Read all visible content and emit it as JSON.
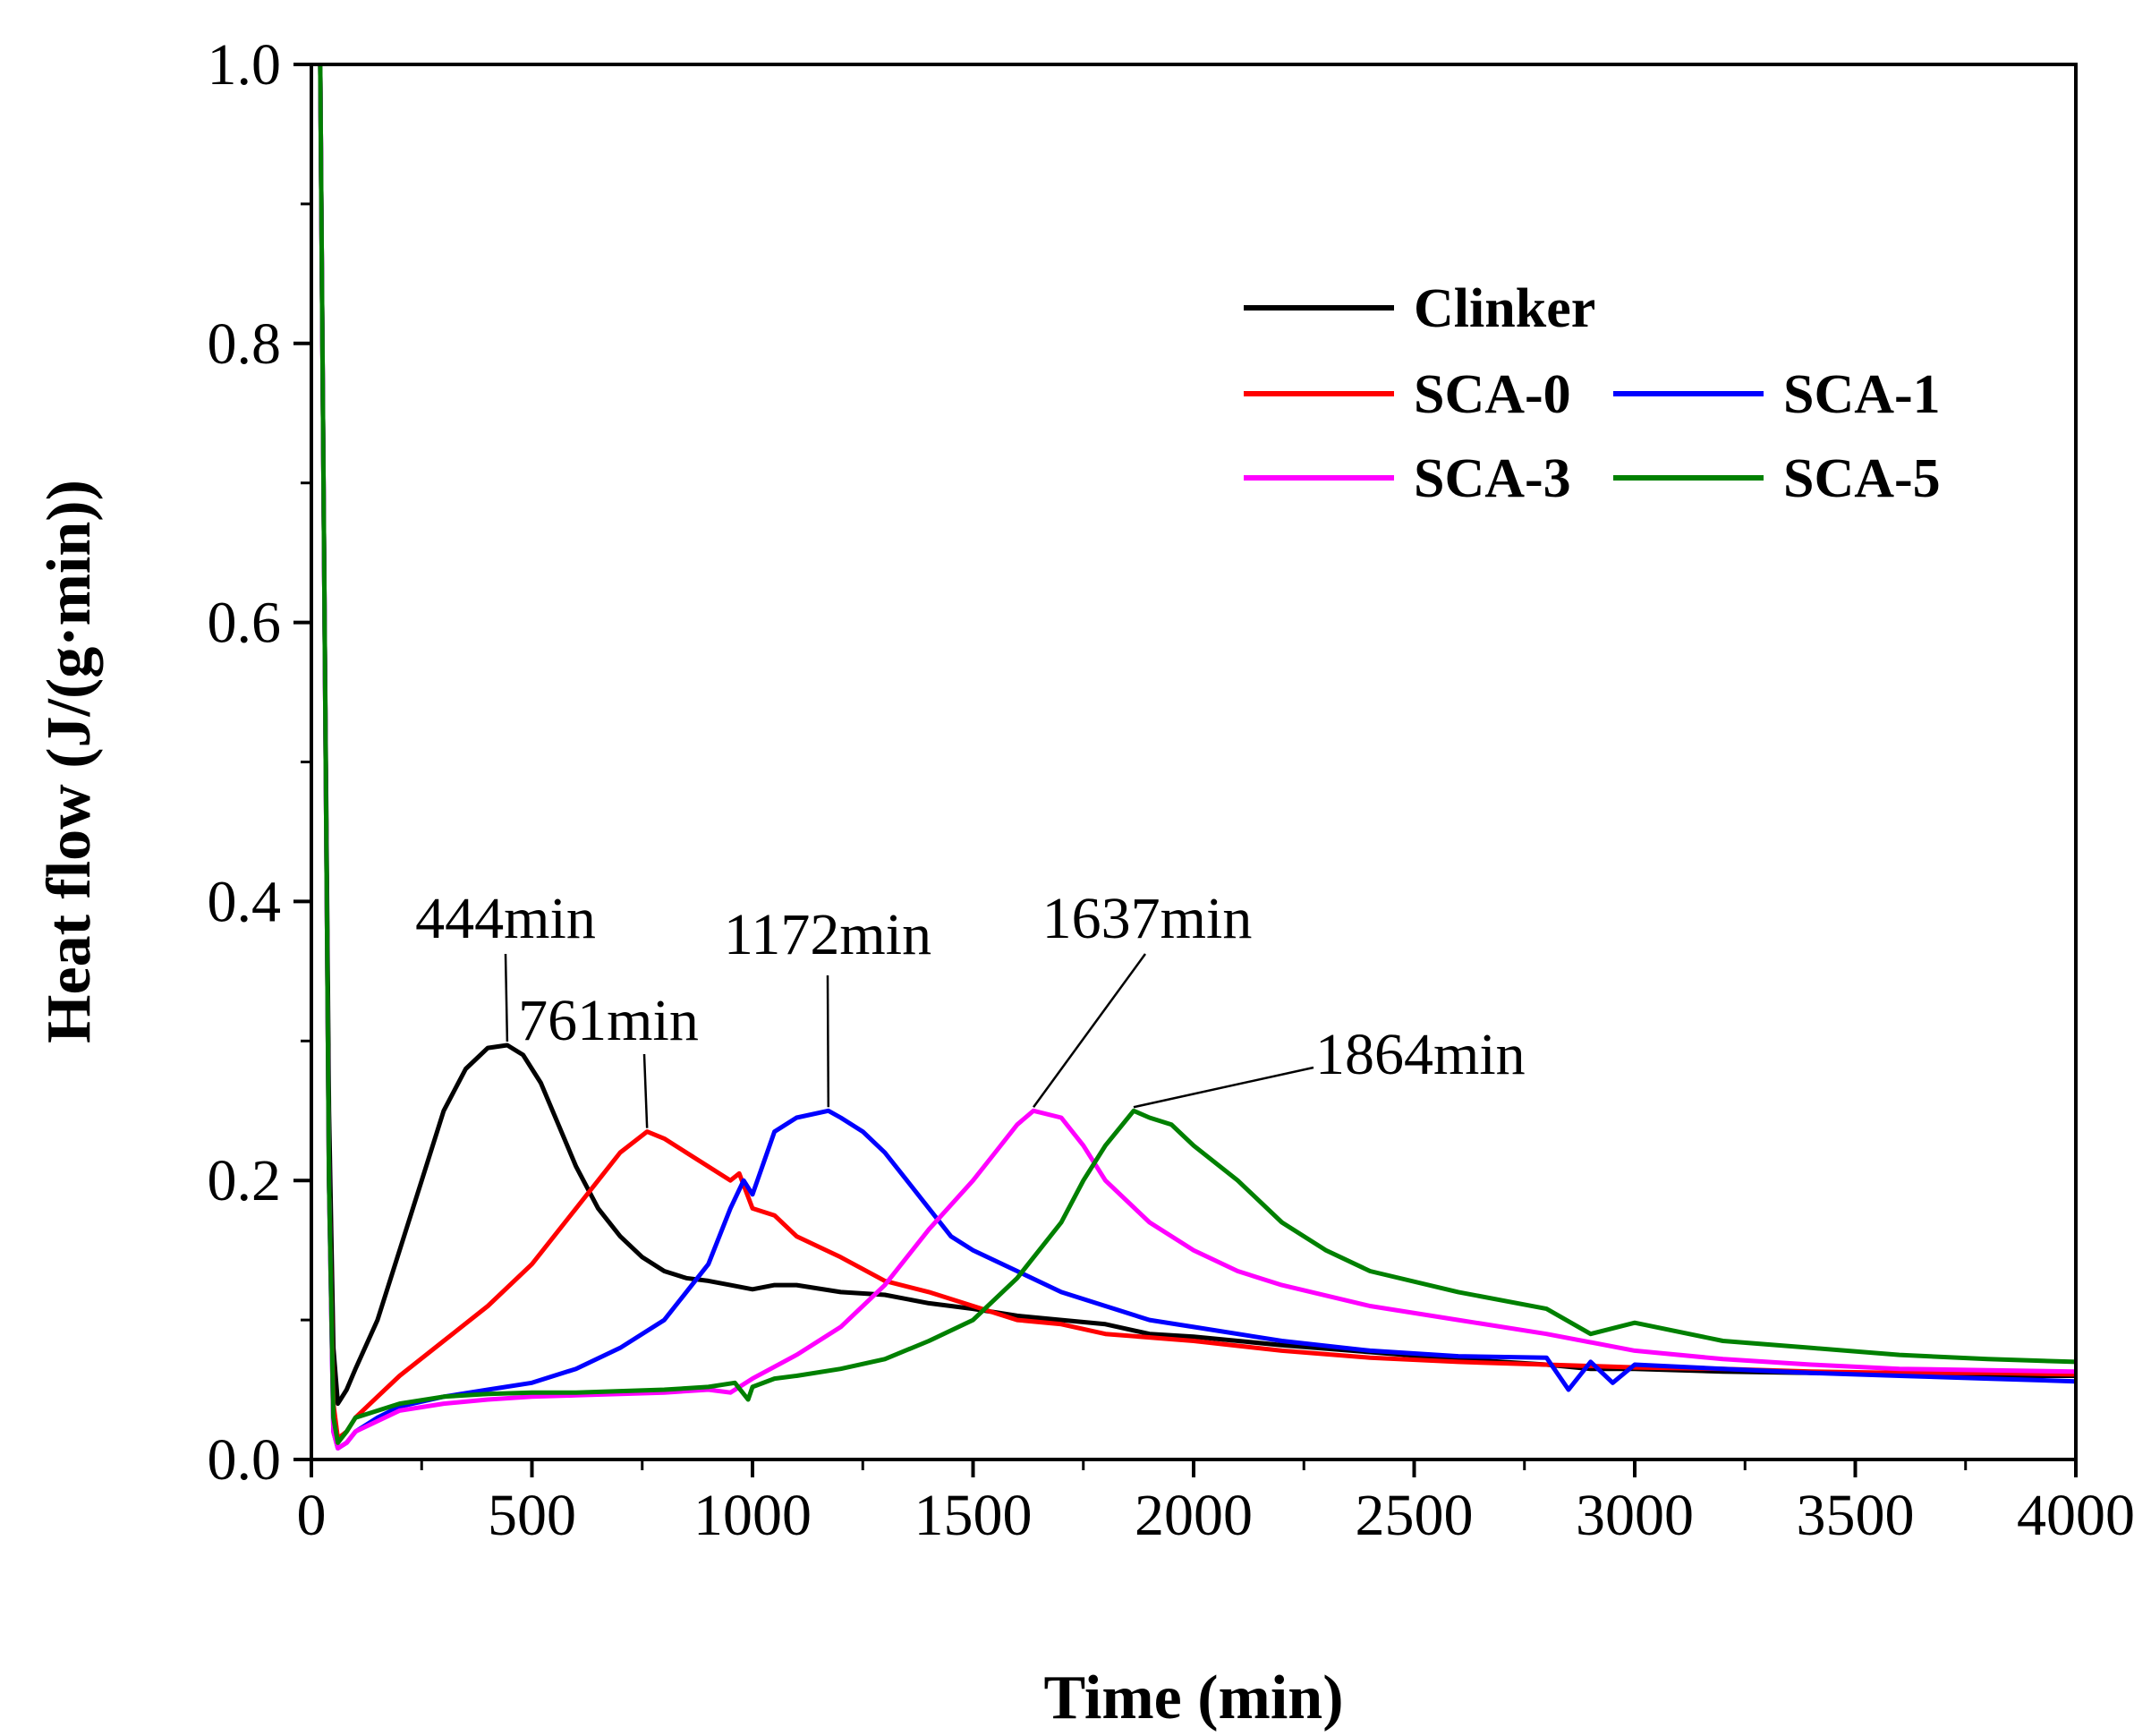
{
  "chart_data": {
    "type": "line",
    "title": "",
    "xlabel": "Time (min)",
    "ylabel": "Heat flow (J/(g·min))",
    "xlim": [
      0,
      4000
    ],
    "ylim": [
      0,
      1.0
    ],
    "xticks": [
      0,
      500,
      1000,
      1500,
      2000,
      2500,
      3000,
      3500,
      4000
    ],
    "xtick_labels": [
      "0",
      "500",
      "1000",
      "1500",
      "2000",
      "2500",
      "3000",
      "3500",
      "4000"
    ],
    "yticks": [
      0.0,
      0.2,
      0.4,
      0.6,
      0.8,
      1.0
    ],
    "ytick_labels": [
      "0.0",
      "0.2",
      "0.4",
      "0.6",
      "0.8",
      "1.0"
    ],
    "grid": false,
    "legend_position": "top-right",
    "series": [
      {
        "name": "Clinker",
        "color": "#000000",
        "x": [
          20,
          30,
          40,
          50,
          60,
          80,
          100,
          150,
          200,
          250,
          300,
          350,
          400,
          444,
          480,
          520,
          560,
          600,
          650,
          700,
          750,
          800,
          850,
          900,
          950,
          1000,
          1050,
          1100,
          1200,
          1300,
          1400,
          1500,
          1600,
          1700,
          1800,
          1900,
          2000,
          2200,
          2400,
          2600,
          2800,
          2900,
          3000,
          3200,
          3400,
          3600,
          3800,
          4000
        ],
        "y": [
          1.0,
          0.6,
          0.25,
          0.08,
          0.04,
          0.05,
          0.065,
          0.1,
          0.15,
          0.2,
          0.25,
          0.28,
          0.295,
          0.297,
          0.29,
          0.27,
          0.24,
          0.21,
          0.18,
          0.16,
          0.145,
          0.135,
          0.13,
          0.128,
          0.125,
          0.122,
          0.125,
          0.125,
          0.12,
          0.118,
          0.112,
          0.108,
          0.103,
          0.1,
          0.097,
          0.09,
          0.088,
          0.082,
          0.077,
          0.072,
          0.068,
          0.065,
          0.065,
          0.063,
          0.062,
          0.062,
          0.06,
          0.06
        ]
      },
      {
        "name": "SCA-0",
        "color": "#ff0000",
        "x": [
          20,
          30,
          40,
          50,
          60,
          80,
          100,
          150,
          200,
          300,
          400,
          500,
          600,
          650,
          700,
          761,
          800,
          850,
          900,
          950,
          970,
          1000,
          1050,
          1100,
          1200,
          1300,
          1400,
          1500,
          1600,
          1700,
          1800,
          2000,
          2200,
          2400,
          2600,
          2800,
          3000,
          3200,
          3400,
          3600,
          3800,
          4000
        ],
        "y": [
          1.0,
          0.6,
          0.2,
          0.04,
          0.015,
          0.02,
          0.03,
          0.045,
          0.06,
          0.085,
          0.11,
          0.14,
          0.18,
          0.2,
          0.22,
          0.235,
          0.23,
          0.22,
          0.21,
          0.2,
          0.205,
          0.18,
          0.175,
          0.16,
          0.145,
          0.128,
          0.12,
          0.11,
          0.1,
          0.097,
          0.09,
          0.085,
          0.078,
          0.073,
          0.07,
          0.068,
          0.066,
          0.065,
          0.063,
          0.062,
          0.062,
          0.061
        ]
      },
      {
        "name": "SCA-1",
        "color": "#0000ff",
        "x": [
          20,
          30,
          40,
          50,
          60,
          80,
          100,
          150,
          200,
          300,
          400,
          500,
          600,
          700,
          800,
          900,
          950,
          980,
          1000,
          1050,
          1100,
          1172,
          1200,
          1250,
          1300,
          1350,
          1400,
          1450,
          1500,
          1600,
          1700,
          1800,
          1900,
          2000,
          2200,
          2400,
          2600,
          2800,
          2850,
          2900,
          2950,
          3000,
          3200,
          3400,
          3600,
          3800,
          4000
        ],
        "y": [
          1.0,
          0.6,
          0.2,
          0.02,
          0.008,
          0.012,
          0.02,
          0.03,
          0.038,
          0.045,
          0.05,
          0.055,
          0.065,
          0.08,
          0.1,
          0.14,
          0.18,
          0.2,
          0.19,
          0.235,
          0.245,
          0.25,
          0.245,
          0.235,
          0.22,
          0.2,
          0.18,
          0.16,
          0.15,
          0.135,
          0.12,
          0.11,
          0.1,
          0.095,
          0.085,
          0.078,
          0.074,
          0.073,
          0.05,
          0.07,
          0.055,
          0.068,
          0.065,
          0.062,
          0.06,
          0.058,
          0.056
        ]
      },
      {
        "name": "SCA-3",
        "color": "#ff00ff",
        "x": [
          20,
          30,
          40,
          50,
          60,
          80,
          100,
          200,
          300,
          400,
          500,
          600,
          700,
          800,
          900,
          950,
          1000,
          1100,
          1200,
          1300,
          1400,
          1500,
          1550,
          1600,
          1637,
          1700,
          1750,
          1800,
          1900,
          2000,
          2100,
          2200,
          2400,
          2600,
          2800,
          3000,
          3200,
          3400,
          3600,
          3800,
          4000
        ],
        "y": [
          1.0,
          0.6,
          0.2,
          0.02,
          0.008,
          0.012,
          0.02,
          0.035,
          0.04,
          0.043,
          0.045,
          0.046,
          0.047,
          0.048,
          0.05,
          0.048,
          0.058,
          0.075,
          0.095,
          0.125,
          0.165,
          0.2,
          0.22,
          0.24,
          0.25,
          0.245,
          0.225,
          0.2,
          0.17,
          0.15,
          0.135,
          0.125,
          0.11,
          0.1,
          0.09,
          0.078,
          0.072,
          0.068,
          0.065,
          0.064,
          0.063
        ]
      },
      {
        "name": "SCA-5",
        "color": "#008000",
        "x": [
          20,
          30,
          40,
          50,
          60,
          80,
          100,
          200,
          300,
          400,
          500,
          600,
          700,
          800,
          900,
          960,
          990,
          1000,
          1050,
          1100,
          1200,
          1300,
          1400,
          1500,
          1600,
          1700,
          1750,
          1800,
          1864,
          1900,
          1950,
          2000,
          2100,
          2200,
          2300,
          2400,
          2600,
          2800,
          2900,
          3000,
          3200,
          3400,
          3600,
          3800,
          4000
        ],
        "y": [
          1.0,
          0.6,
          0.2,
          0.03,
          0.012,
          0.02,
          0.03,
          0.04,
          0.045,
          0.047,
          0.048,
          0.048,
          0.049,
          0.05,
          0.052,
          0.055,
          0.043,
          0.052,
          0.058,
          0.06,
          0.065,
          0.072,
          0.085,
          0.1,
          0.13,
          0.17,
          0.2,
          0.225,
          0.25,
          0.245,
          0.24,
          0.225,
          0.2,
          0.17,
          0.15,
          0.135,
          0.12,
          0.108,
          0.09,
          0.098,
          0.085,
          0.08,
          0.075,
          0.072,
          0.07
        ]
      }
    ],
    "annotations": [
      {
        "text": "444min",
        "x": 444,
        "y": 0.297
      },
      {
        "text": "761min",
        "x": 761,
        "y": 0.235
      },
      {
        "text": "1172min",
        "x": 1172,
        "y": 0.25
      },
      {
        "text": "1637min",
        "x": 1637,
        "y": 0.25
      },
      {
        "text": "1864min",
        "x": 1864,
        "y": 0.25
      }
    ]
  }
}
